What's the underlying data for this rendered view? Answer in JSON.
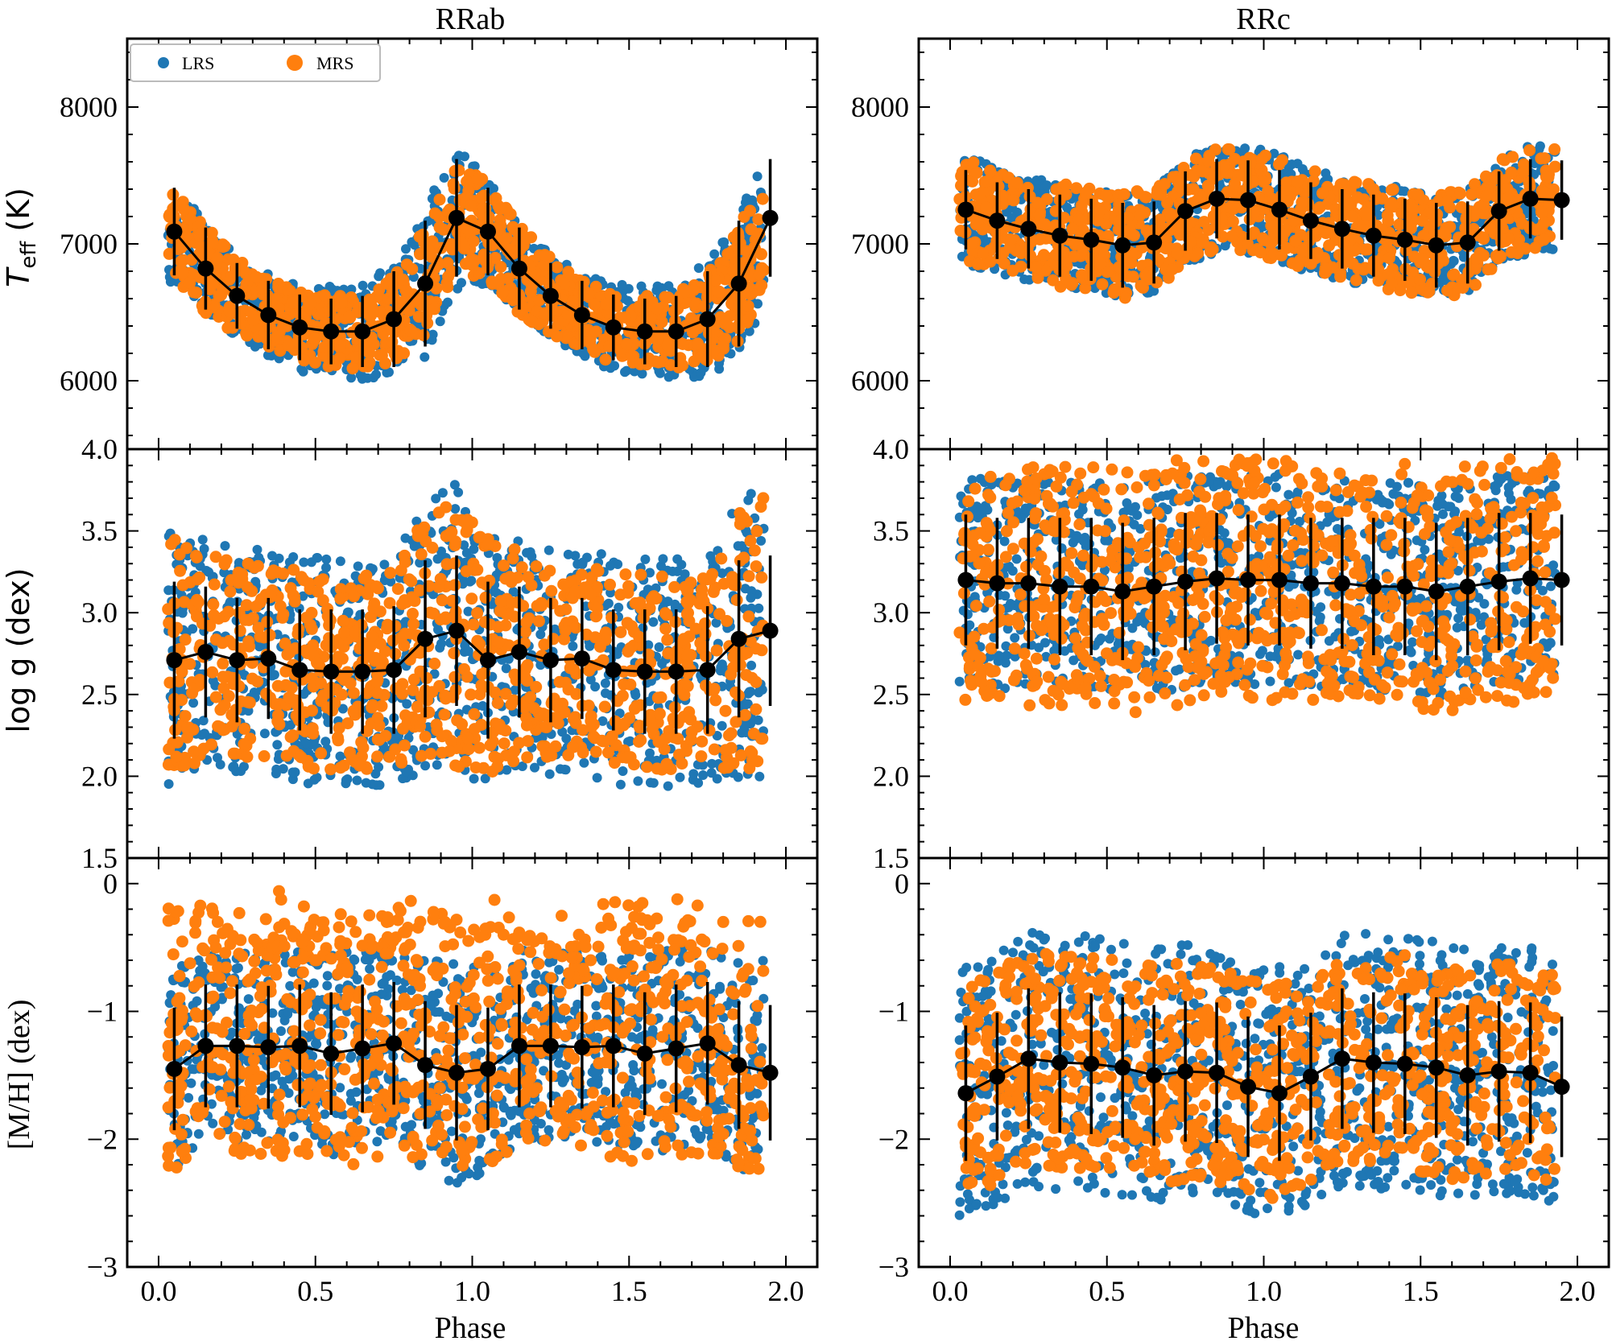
{
  "figure": {
    "columns": [
      "RRab",
      "RRc"
    ],
    "xlabel": "Phase",
    "legend": {
      "placement": "top-left",
      "entries": [
        {
          "label": "LRS",
          "color": "#1f77b4"
        },
        {
          "label": "MRS",
          "color": "#ff7f0e"
        }
      ]
    }
  },
  "colors": {
    "lrs": "#1f77b4",
    "mrs": "#ff7f0e",
    "mean": "#000000"
  },
  "chart_data": [
    {
      "type": "scatter",
      "panel": "RRab-Teff",
      "column": "RRab",
      "ylabel_main": "T",
      "ylabel_sub": "eff",
      "ylabel_unit": " (K)",
      "xlim": [
        -0.1,
        2.1
      ],
      "ylim": [
        5500,
        8500
      ],
      "xticks": [
        0.0,
        0.5,
        1.0,
        1.5,
        2.0
      ],
      "xtick_labels": [
        "0.0",
        "0.5",
        "1.0",
        "1.5",
        "2.0"
      ],
      "yticks": [
        6000,
        7000,
        8000
      ],
      "ytick_labels": [
        "6000",
        "7000",
        "8000"
      ],
      "mean_series": {
        "name": "mean",
        "x": [
          0.05,
          0.15,
          0.25,
          0.35,
          0.45,
          0.55,
          0.65,
          0.75,
          0.85,
          0.95,
          1.05,
          1.15,
          1.25,
          1.35,
          1.45,
          1.55,
          1.65,
          1.75,
          1.85,
          1.95
        ],
        "y": [
          7090,
          6820,
          6620,
          6480,
          6390,
          6360,
          6360,
          6450,
          6710,
          7190,
          7090,
          6820,
          6620,
          6480,
          6390,
          6360,
          6360,
          6450,
          6710,
          7190
        ],
        "err": [
          320,
          300,
          240,
          250,
          240,
          240,
          260,
          350,
          460,
          430,
          320,
          300,
          240,
          250,
          240,
          240,
          260,
          350,
          460,
          430
        ]
      },
      "scatter_envelope": {
        "lrs_spread": [
          380,
          320,
          300,
          300,
          320,
          330,
          350,
          420,
          560,
          520,
          380,
          320,
          300,
          300,
          320,
          330,
          350,
          420,
          560,
          520
        ],
        "mrs_spread": [
          360,
          330,
          280,
          260,
          260,
          260,
          280,
          330,
          420,
          400,
          360,
          330,
          280,
          260,
          260,
          260,
          280,
          330,
          420,
          400
        ]
      }
    },
    {
      "type": "scatter",
      "panel": "RRc-Teff",
      "column": "RRc",
      "xlim": [
        -0.1,
        2.1
      ],
      "ylim": [
        5500,
        8500
      ],
      "xticks": [
        0.0,
        0.5,
        1.0,
        1.5,
        2.0
      ],
      "xtick_labels": [
        "0.0",
        "0.5",
        "1.0",
        "1.5",
        "2.0"
      ],
      "yticks": [
        6000,
        7000,
        8000
      ],
      "ytick_labels": [
        "6000",
        "7000",
        "8000"
      ],
      "mean_series": {
        "name": "mean",
        "x": [
          0.05,
          0.15,
          0.25,
          0.35,
          0.45,
          0.55,
          0.65,
          0.75,
          0.85,
          0.95,
          1.05,
          1.15,
          1.25,
          1.35,
          1.45,
          1.55,
          1.65,
          1.75,
          1.85,
          1.95
        ],
        "y": [
          7250,
          7170,
          7110,
          7060,
          7030,
          6990,
          7010,
          7240,
          7330,
          7320,
          7250,
          7170,
          7110,
          7060,
          7030,
          6990,
          7010,
          7240,
          7330,
          7320
        ],
        "err": [
          290,
          280,
          290,
          300,
          300,
          310,
          300,
          290,
          290,
          290,
          290,
          280,
          290,
          300,
          300,
          310,
          300,
          290,
          290,
          290
        ]
      },
      "scatter_envelope": {
        "lrs_spread": [
          400,
          380,
          380,
          380,
          380,
          380,
          380,
          380,
          400,
          400,
          400,
          380,
          380,
          380,
          380,
          380,
          380,
          380,
          400,
          400
        ],
        "mrs_spread": [
          380,
          370,
          370,
          380,
          380,
          390,
          380,
          380,
          380,
          380,
          380,
          370,
          370,
          380,
          380,
          390,
          380,
          380,
          380,
          380
        ]
      }
    },
    {
      "type": "scatter",
      "panel": "RRab-logg",
      "column": "RRab",
      "ylabel_main": "log g",
      "ylabel_unit": " (dex)",
      "xlim": [
        -0.1,
        2.1
      ],
      "ylim": [
        1.5,
        4.0
      ],
      "xticks": [
        0.0,
        0.5,
        1.0,
        1.5,
        2.0
      ],
      "xtick_labels": [
        "0.0",
        "0.5",
        "1.0",
        "1.5",
        "2.0"
      ],
      "yticks": [
        1.5,
        2.0,
        2.5,
        3.0,
        3.5,
        4.0
      ],
      "ytick_labels": [
        "1.5",
        "2.0",
        "2.5",
        "3.0",
        "3.5",
        "4.0"
      ],
      "mean_series": {
        "name": "mean",
        "x": [
          0.05,
          0.15,
          0.25,
          0.35,
          0.45,
          0.55,
          0.65,
          0.75,
          0.85,
          0.95,
          1.05,
          1.15,
          1.25,
          1.35,
          1.45,
          1.55,
          1.65,
          1.75,
          1.85,
          1.95
        ],
        "y": [
          2.71,
          2.76,
          2.71,
          2.72,
          2.65,
          2.64,
          2.64,
          2.65,
          2.84,
          2.89,
          2.71,
          2.76,
          2.71,
          2.72,
          2.65,
          2.64,
          2.64,
          2.65,
          2.84,
          2.89
        ],
        "err": [
          0.48,
          0.4,
          0.38,
          0.37,
          0.37,
          0.38,
          0.38,
          0.39,
          0.48,
          0.46,
          0.48,
          0.4,
          0.38,
          0.37,
          0.37,
          0.38,
          0.38,
          0.39,
          0.48,
          0.46
        ]
      },
      "scatter_envelope": {
        "lrs_spread": [
          0.8,
          0.7,
          0.7,
          0.7,
          0.7,
          0.7,
          0.7,
          0.7,
          0.85,
          0.9,
          0.8,
          0.7,
          0.7,
          0.7,
          0.7,
          0.7,
          0.7,
          0.7,
          0.85,
          0.9
        ],
        "mrs_spread": [
          0.75,
          0.65,
          0.6,
          0.6,
          0.6,
          0.6,
          0.6,
          0.6,
          0.8,
          0.85,
          0.75,
          0.65,
          0.6,
          0.6,
          0.6,
          0.6,
          0.6,
          0.6,
          0.8,
          0.85
        ]
      }
    },
    {
      "type": "scatter",
      "panel": "RRc-logg",
      "column": "RRc",
      "xlim": [
        -0.1,
        2.1
      ],
      "ylim": [
        1.5,
        4.0
      ],
      "xticks": [
        0.0,
        0.5,
        1.0,
        1.5,
        2.0
      ],
      "xtick_labels": [
        "0.0",
        "0.5",
        "1.0",
        "1.5",
        "2.0"
      ],
      "yticks": [
        1.5,
        2.0,
        2.5,
        3.0,
        3.5,
        4.0
      ],
      "ytick_labels": [
        "1.5",
        "2.0",
        "2.5",
        "3.0",
        "3.5",
        "4.0"
      ],
      "mean_series": {
        "name": "mean",
        "x": [
          0.05,
          0.15,
          0.25,
          0.35,
          0.45,
          0.55,
          0.65,
          0.75,
          0.85,
          0.95,
          1.05,
          1.15,
          1.25,
          1.35,
          1.45,
          1.55,
          1.65,
          1.75,
          1.85,
          1.95
        ],
        "y": [
          3.2,
          3.18,
          3.18,
          3.16,
          3.16,
          3.13,
          3.16,
          3.19,
          3.21,
          3.2,
          3.2,
          3.18,
          3.18,
          3.16,
          3.16,
          3.13,
          3.16,
          3.19,
          3.21,
          3.2
        ],
        "err": [
          0.4,
          0.4,
          0.4,
          0.42,
          0.42,
          0.42,
          0.42,
          0.42,
          0.4,
          0.4,
          0.4,
          0.4,
          0.4,
          0.42,
          0.42,
          0.42,
          0.42,
          0.42,
          0.4,
          0.4
        ]
      },
      "scatter_envelope": {
        "lrs_spread": [
          0.65,
          0.65,
          0.65,
          0.65,
          0.65,
          0.65,
          0.65,
          0.65,
          0.65,
          0.65,
          0.65,
          0.65,
          0.65,
          0.65,
          0.65,
          0.65,
          0.65,
          0.65,
          0.65,
          0.65
        ],
        "mrs_spread": [
          0.75,
          0.75,
          0.75,
          0.75,
          0.75,
          0.75,
          0.75,
          0.75,
          0.75,
          0.75,
          0.75,
          0.75,
          0.75,
          0.75,
          0.75,
          0.75,
          0.75,
          0.75,
          0.75,
          0.75
        ]
      }
    },
    {
      "type": "scatter",
      "panel": "RRab-MH",
      "column": "RRab",
      "ylabel_main": "[M/H] (dex)",
      "xlabel": "Phase",
      "xlim": [
        -0.1,
        2.1
      ],
      "ylim": [
        -3.0,
        0.2
      ],
      "xticks": [
        0.0,
        0.5,
        1.0,
        1.5,
        2.0
      ],
      "xtick_labels": [
        "0.0",
        "0.5",
        "1.0",
        "1.5",
        "2.0"
      ],
      "yticks": [
        -3,
        -2,
        -1,
        0
      ],
      "ytick_labels": [
        "−3",
        "−2",
        "−1",
        "0"
      ],
      "mean_series": {
        "name": "mean",
        "x": [
          0.05,
          0.15,
          0.25,
          0.35,
          0.45,
          0.55,
          0.65,
          0.75,
          0.85,
          0.95,
          1.05,
          1.15,
          1.25,
          1.35,
          1.45,
          1.55,
          1.65,
          1.75,
          1.85,
          1.95
        ],
        "y": [
          -1.45,
          -1.27,
          -1.27,
          -1.28,
          -1.27,
          -1.33,
          -1.29,
          -1.25,
          -1.42,
          -1.48,
          -1.45,
          -1.27,
          -1.27,
          -1.28,
          -1.27,
          -1.33,
          -1.29,
          -1.25,
          -1.42,
          -1.48
        ],
        "err": [
          0.48,
          0.48,
          0.48,
          0.48,
          0.48,
          0.48,
          0.5,
          0.48,
          0.5,
          0.53,
          0.48,
          0.48,
          0.48,
          0.48,
          0.48,
          0.48,
          0.5,
          0.48,
          0.5,
          0.53
        ]
      },
      "scatter_envelope": {
        "lrs_spread": [
          0.8,
          0.75,
          0.75,
          0.75,
          0.75,
          0.8,
          0.8,
          0.75,
          0.85,
          0.9,
          0.8,
          0.75,
          0.75,
          0.75,
          0.75,
          0.8,
          0.8,
          0.75,
          0.85,
          0.9
        ],
        "mrs_spread": [
          0.8,
          0.8,
          0.85,
          0.85,
          0.9,
          0.9,
          0.9,
          0.85,
          0.8,
          0.8,
          0.8,
          0.8,
          0.85,
          0.85,
          0.9,
          0.9,
          0.9,
          0.85,
          0.8,
          0.8
        ]
      }
    },
    {
      "type": "scatter",
      "panel": "RRc-MH",
      "column": "RRc",
      "xlabel": "Phase",
      "xlim": [
        -0.1,
        2.1
      ],
      "ylim": [
        -3.0,
        0.2
      ],
      "xticks": [
        0.0,
        0.5,
        1.0,
        1.5,
        2.0
      ],
      "xtick_labels": [
        "0.0",
        "0.5",
        "1.0",
        "1.5",
        "2.0"
      ],
      "yticks": [
        -3,
        -2,
        -1,
        0
      ],
      "ytick_labels": [
        "−3",
        "−2",
        "−1",
        "0"
      ],
      "mean_series": {
        "name": "mean",
        "x": [
          0.05,
          0.15,
          0.25,
          0.35,
          0.45,
          0.55,
          0.65,
          0.75,
          0.85,
          0.95,
          1.05,
          1.15,
          1.25,
          1.35,
          1.45,
          1.55,
          1.65,
          1.75,
          1.85,
          1.95
        ],
        "y": [
          -1.64,
          -1.51,
          -1.37,
          -1.4,
          -1.41,
          -1.44,
          -1.5,
          -1.47,
          -1.48,
          -1.59,
          -1.64,
          -1.51,
          -1.37,
          -1.4,
          -1.41,
          -1.44,
          -1.5,
          -1.47,
          -1.48,
          -1.59
        ],
        "err": [
          0.53,
          0.5,
          0.55,
          0.55,
          0.55,
          0.55,
          0.55,
          0.55,
          0.55,
          0.55,
          0.53,
          0.5,
          0.55,
          0.55,
          0.55,
          0.55,
          0.55,
          0.55,
          0.55,
          0.55
        ]
      },
      "scatter_envelope": {
        "lrs_spread": [
          1.0,
          1.0,
          1.0,
          1.0,
          1.0,
          1.0,
          1.0,
          1.0,
          1.0,
          1.0,
          1.0,
          1.0,
          1.0,
          1.0,
          1.0,
          1.0,
          1.0,
          1.0,
          1.0,
          1.0
        ],
        "mrs_spread": [
          0.85,
          0.85,
          0.85,
          0.85,
          0.85,
          0.85,
          0.85,
          0.85,
          0.85,
          0.85,
          0.85,
          0.85,
          0.85,
          0.85,
          0.85,
          0.85,
          0.85,
          0.85,
          0.85,
          0.85
        ]
      }
    }
  ]
}
